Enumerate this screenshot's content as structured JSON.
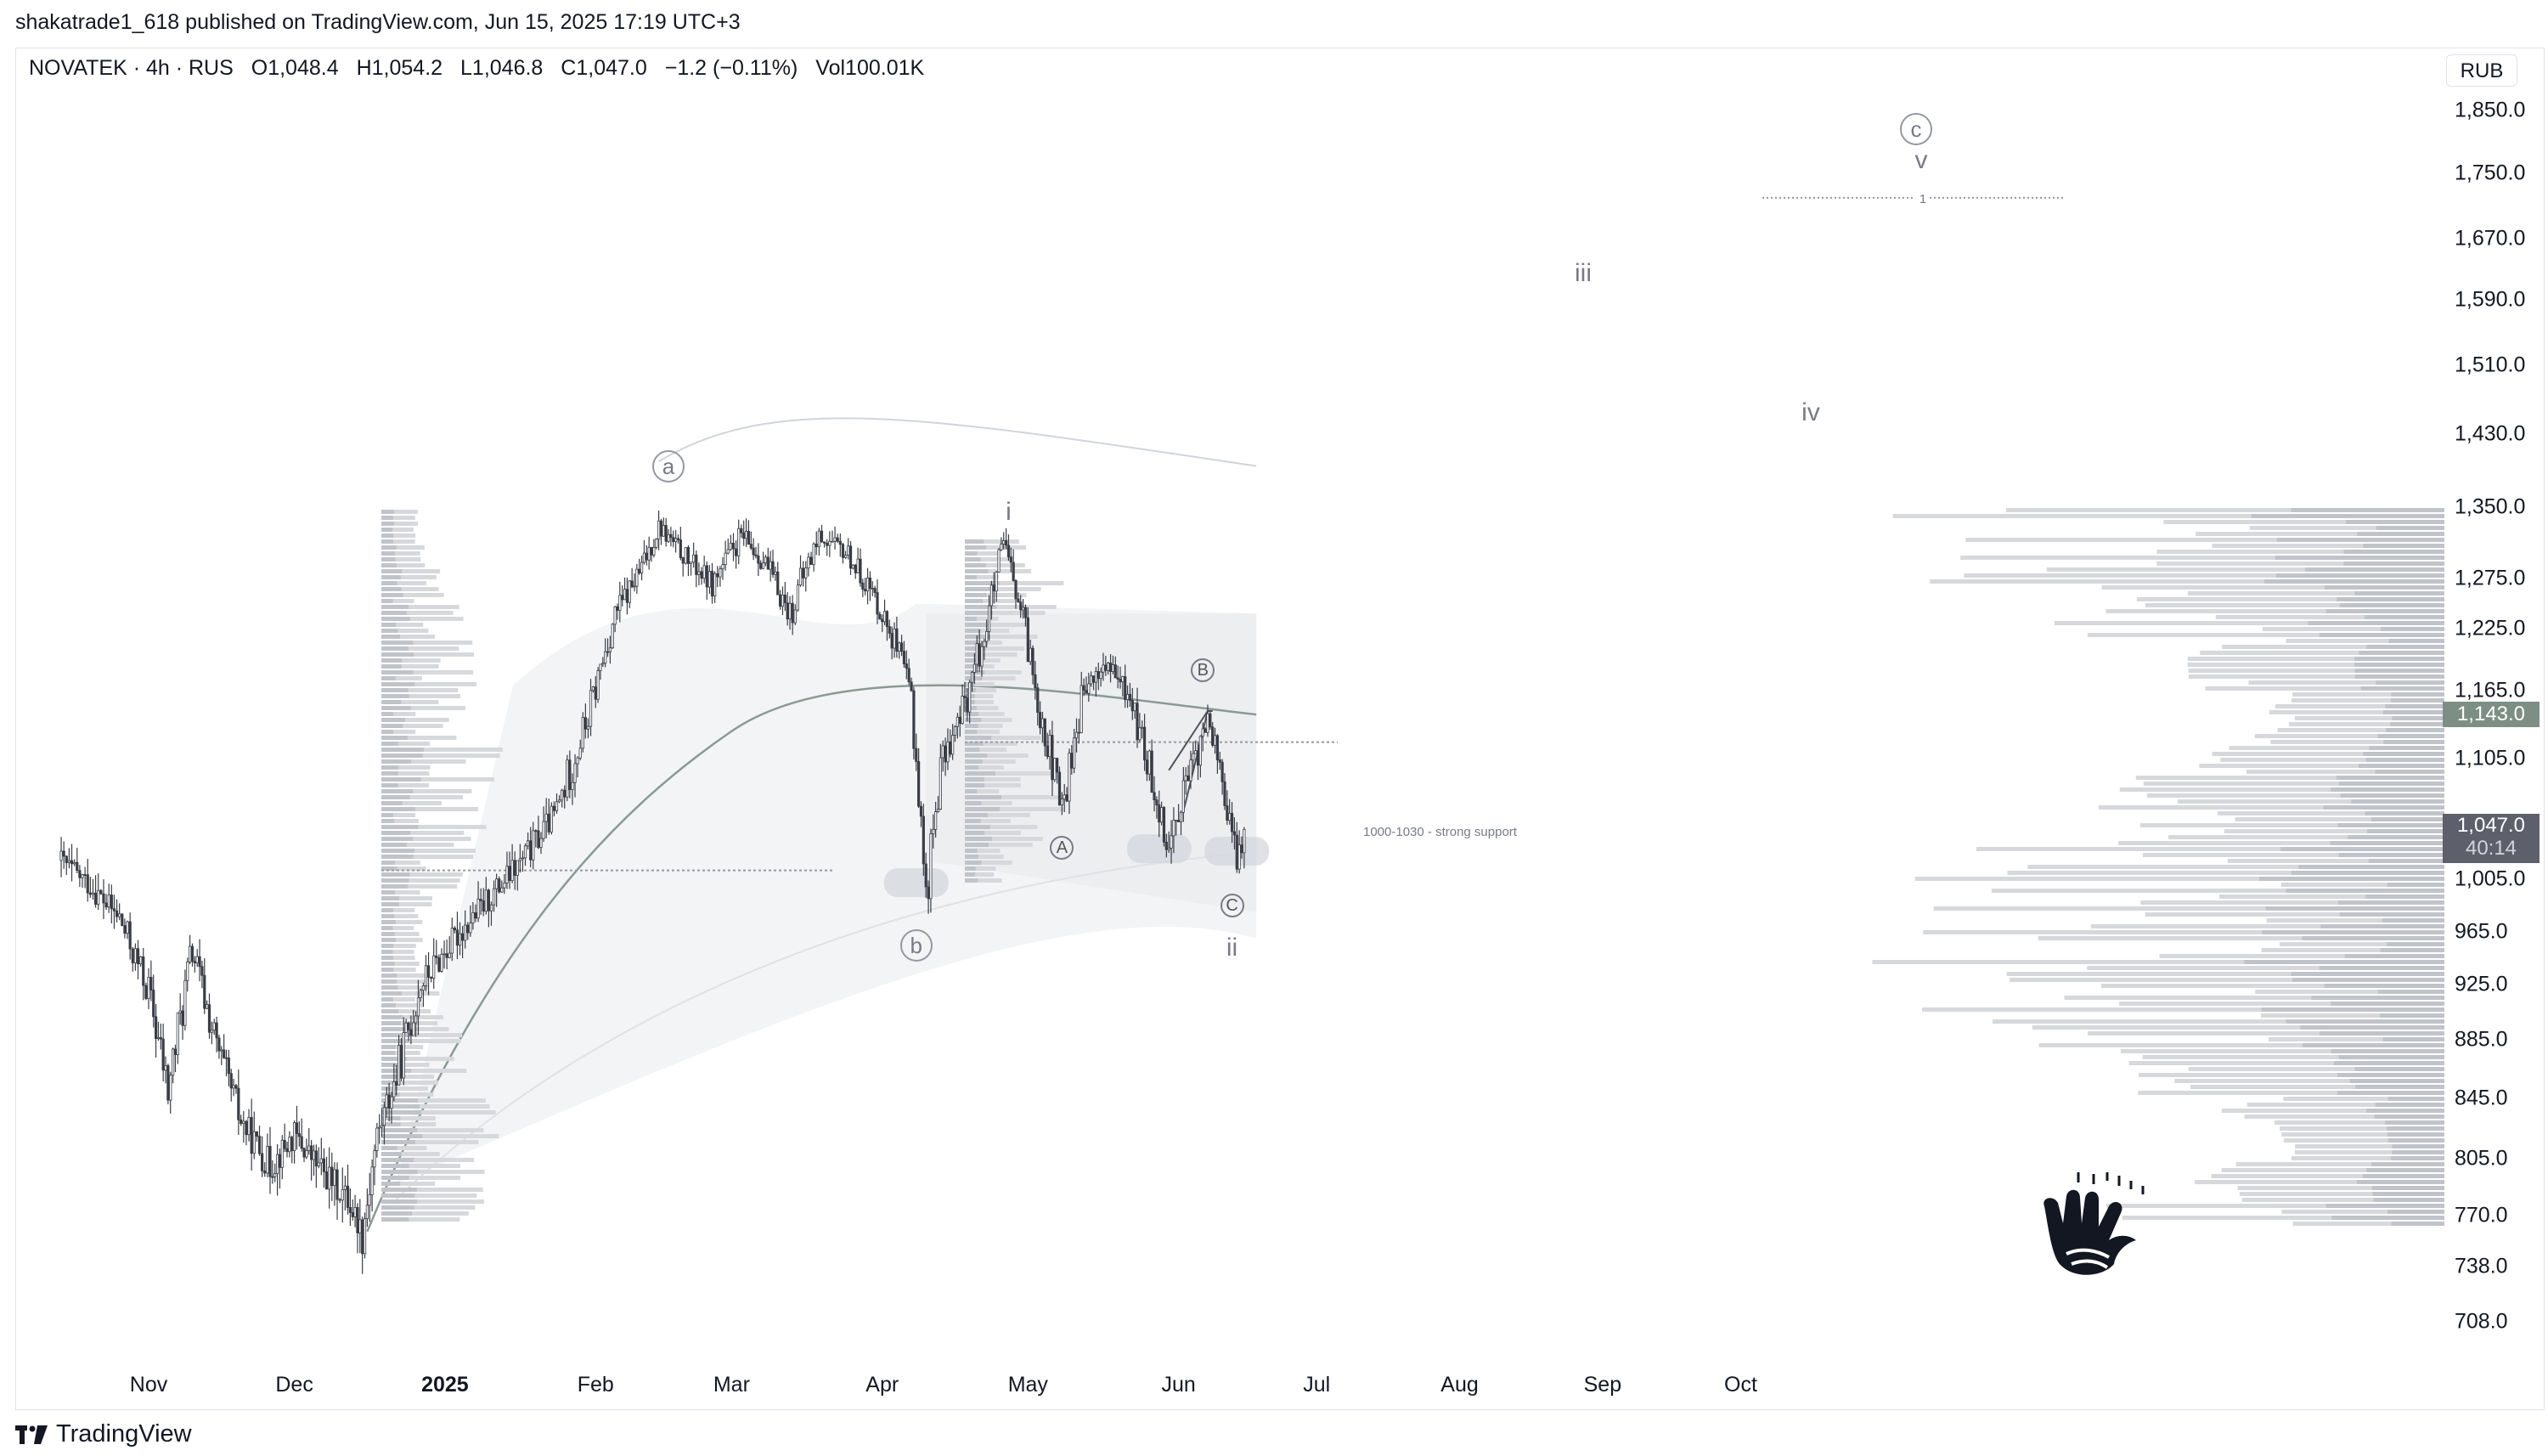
{
  "header": {
    "published": "shakatrade1_618 published on TradingView.com, Jun 15, 2025 17:19 UTC+3",
    "symbol": "NOVATEK · 4h · RUS",
    "o_label": "O",
    "o_value": "1,048.4",
    "h_label": "H",
    "h_value": "1,054.2",
    "l_label": "L",
    "l_value": "1,046.8",
    "c_label": "C",
    "c_value": "1,047.0",
    "change": "−1.2 (−0.11%)",
    "vol_label": "Vol",
    "vol_value": "100.01K",
    "currency": "RUB"
  },
  "footer": {
    "brand": "TradingView"
  },
  "colors": {
    "candle": "#3a3d45",
    "profile_bar": "#d6d8dc",
    "profile_dark": "#9598a1",
    "band_fill": "#eef0f1",
    "vwap_line": "#8a9a92",
    "current_price_bg": "#5d606b",
    "marked_price_bg": "#7d8f85"
  },
  "price_tags": {
    "marked": "1,143.0",
    "current": "1,047.0",
    "countdown": "40:14"
  },
  "annotations": {
    "wave_labels": [
      {
        "id": "wave-a",
        "text": "a",
        "circled": true
      },
      {
        "id": "wave-b",
        "text": "b",
        "circled": true
      },
      {
        "id": "wave-c",
        "text": "c",
        "circled": true
      },
      {
        "id": "wave-i",
        "text": "i",
        "circled": false
      },
      {
        "id": "wave-ii",
        "text": "ii",
        "circled": false
      },
      {
        "id": "wave-iii",
        "text": "iii",
        "circled": false
      },
      {
        "id": "wave-iv",
        "text": "iv",
        "circled": false
      },
      {
        "id": "wave-v",
        "text": "v",
        "circled": false
      },
      {
        "id": "wave-A",
        "text": "A",
        "circled": true
      },
      {
        "id": "wave-B",
        "text": "B",
        "circled": true
      },
      {
        "id": "wave-C",
        "text": "C",
        "circled": true
      }
    ],
    "support_note": "1000-1030 - strong support",
    "target_level_label": "1"
  },
  "chart_data": {
    "type": "line",
    "title": "",
    "xlabel": "",
    "ylabel": "",
    "x_ticks": [
      "Nov",
      "Dec",
      "2025",
      "Feb",
      "Mar",
      "Apr",
      "May",
      "Jun",
      "Jul",
      "Aug",
      "Sep",
      "Oct"
    ],
    "y_ticks": [
      "1,850.0",
      "1,750.0",
      "1,670.0",
      "1,590.0",
      "1,510.0",
      "1,430.0",
      "1,350.0",
      "1,275.0",
      "1,225.0",
      "1,165.0",
      "1,105.0",
      "1,005.0",
      "965.0",
      "925.0",
      "885.0",
      "845.0",
      "805.0",
      "770.0",
      "738.0",
      "708.0"
    ],
    "ylim": [
      690,
      1880
    ],
    "series": [
      {
        "values": [
          [
            "2024-10-14",
            1020
          ],
          [
            "2024-10-20",
            1000
          ],
          [
            "2024-10-26",
            975
          ],
          [
            "2024-11-01",
            920
          ],
          [
            "2024-11-05",
            850
          ],
          [
            "2024-11-10",
            950
          ],
          [
            "2024-11-15",
            880
          ],
          [
            "2024-11-20",
            830
          ],
          [
            "2024-11-26",
            800
          ],
          [
            "2024-12-01",
            820
          ],
          [
            "2024-12-06",
            800
          ],
          [
            "2024-12-12",
            780
          ],
          [
            "2024-12-15",
            760
          ],
          [
            "2024-12-18",
            820
          ],
          [
            "2024-12-22",
            860
          ],
          [
            "2024-12-27",
            925
          ],
          [
            "2025-01-03",
            960
          ],
          [
            "2025-01-10",
            990
          ],
          [
            "2025-01-17",
            1020
          ],
          [
            "2025-01-24",
            1060
          ],
          [
            "2025-01-31",
            1150
          ],
          [
            "2025-02-05",
            1240
          ],
          [
            "2025-02-10",
            1280
          ],
          [
            "2025-02-14",
            1330
          ],
          [
            "2025-02-19",
            1300
          ],
          [
            "2025-02-25",
            1270
          ],
          [
            "2025-03-03",
            1320
          ],
          [
            "2025-03-08",
            1290
          ],
          [
            "2025-03-13",
            1240
          ],
          [
            "2025-03-19",
            1320
          ],
          [
            "2025-03-25",
            1300
          ],
          [
            "2025-03-30",
            1260
          ],
          [
            "2025-04-03",
            1220
          ],
          [
            "2025-04-07",
            1160
          ],
          [
            "2025-04-09",
            1050
          ],
          [
            "2025-04-10",
            990
          ],
          [
            "2025-04-13",
            1100
          ],
          [
            "2025-04-17",
            1140
          ],
          [
            "2025-04-22",
            1220
          ],
          [
            "2025-04-26",
            1310
          ],
          [
            "2025-04-30",
            1230
          ],
          [
            "2025-05-04",
            1140
          ],
          [
            "2025-05-08",
            1060
          ],
          [
            "2025-05-12",
            1160
          ],
          [
            "2025-05-17",
            1190
          ],
          [
            "2025-05-22",
            1160
          ],
          [
            "2025-05-27",
            1080
          ],
          [
            "2025-05-30",
            1030
          ],
          [
            "2025-06-02",
            1080
          ],
          [
            "2025-06-05",
            1110
          ],
          [
            "2025-06-07",
            1140
          ],
          [
            "2025-06-09",
            1110
          ],
          [
            "2025-06-11",
            1060
          ],
          [
            "2025-06-13",
            1020
          ],
          [
            "2025-06-15",
            1047
          ]
        ]
      }
    ],
    "grid": false,
    "legend": "none"
  }
}
